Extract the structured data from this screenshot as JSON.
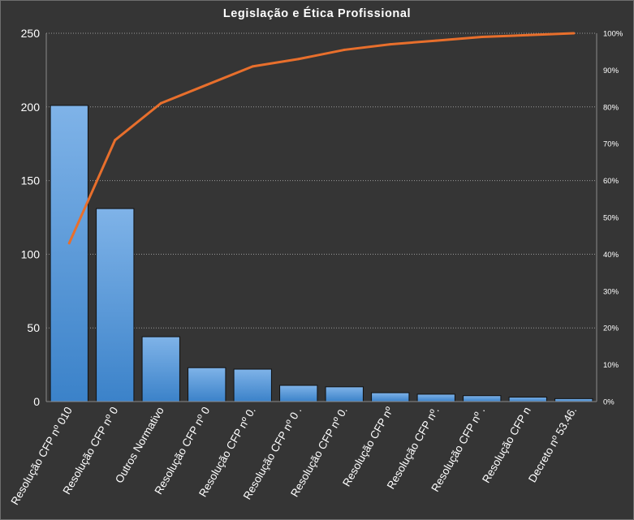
{
  "chart_data": {
    "type": "bar",
    "title": "Legislação e Ética Profissional",
    "xlabel": "",
    "ylabel": "",
    "categories": [
      "Resolução CFP nº 010",
      "Resolução CFP nº 0",
      "Outros Normativo",
      "Resolução CFP nº 0",
      "Resolução CFP nº 0.",
      "Resolução CFP nº 0 .",
      "Resolução CFP nº 0.",
      "Resolução CFP nº",
      "Resolução CFP nº.",
      "Resolução CFP nº .",
      "Resolução CFP n",
      "Decreto nº 53.46."
    ],
    "series": [
      {
        "type": "bar",
        "axis": "left",
        "values": [
          201,
          131,
          44,
          23,
          22,
          11,
          10,
          6,
          5,
          4,
          3,
          2
        ]
      },
      {
        "type": "line",
        "axis": "right",
        "values": [
          0.43,
          0.71,
          0.81,
          0.86,
          0.91,
          0.93,
          0.955,
          0.97,
          0.98,
          0.99,
          0.995,
          1.0
        ]
      }
    ],
    "ylim": [
      0,
      250
    ],
    "yticks": [
      "0",
      "50",
      "100",
      "150",
      "200",
      "250"
    ],
    "y2lim": [
      0,
      1
    ],
    "y2ticks": [
      "0%",
      "10%",
      "20%",
      "30%",
      "40%",
      "50%",
      "60%",
      "70%",
      "80%",
      "90%",
      "100%"
    ],
    "grid": "horizontal dotted",
    "legend": "none",
    "colors": {
      "background": "#353535",
      "bar_top": "#7fb3e8",
      "bar_bottom": "#3b82c9",
      "line": "#e86f2c",
      "grid": "#9a9a9a",
      "text": "#ffffff"
    }
  }
}
